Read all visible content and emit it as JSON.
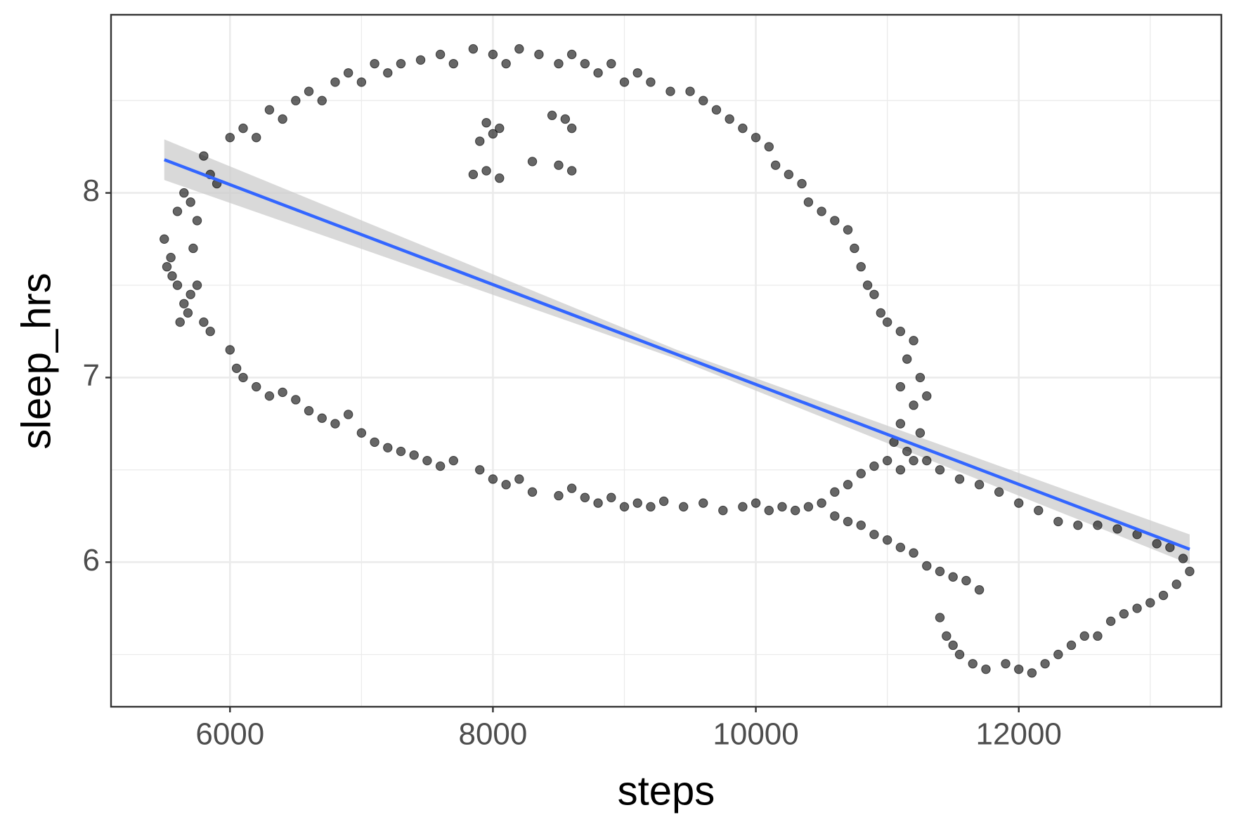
{
  "chart_data": {
    "type": "scatter",
    "x_label": "steps",
    "y_label": "sleep_hrs",
    "xlim": [
      5095,
      13541
    ],
    "ylim": [
      5.217,
      8.965
    ],
    "xticks": [
      6000,
      8000,
      10000,
      12000
    ],
    "yticks": [
      6,
      7,
      8
    ],
    "minor_xticks": [
      7000,
      9000,
      11000,
      13000
    ],
    "minor_yticks": [
      5.5,
      6.5,
      7.5,
      8.5
    ],
    "grid": true,
    "color": "#000000",
    "x": [
      5500,
      5520,
      5550,
      5600,
      5650,
      5700,
      5750,
      5600,
      5650,
      5700,
      5750,
      5620,
      5680,
      5800,
      5850,
      5720,
      5560,
      5800,
      5850,
      5900,
      6000,
      6100,
      6200,
      6300,
      6400,
      6500,
      6600,
      6700,
      6800,
      6900,
      7000,
      7100,
      7200,
      7300,
      7450,
      7600,
      7700,
      7850,
      8000,
      8100,
      8200,
      8350,
      8500,
      8600,
      8700,
      8800,
      8900,
      9000,
      9100,
      9200,
      9350,
      9500,
      9600,
      9700,
      9800,
      9900,
      10000,
      10100,
      10150,
      10250,
      10350,
      10400,
      10500,
      10600,
      10700,
      10750,
      10800,
      10850,
      10900,
      10950,
      11000,
      11100,
      11200,
      11150,
      11250,
      11100,
      11200,
      11300,
      11100,
      11250,
      11150,
      11100,
      11200,
      11050,
      6000,
      6050,
      6100,
      6200,
      6300,
      6400,
      6500,
      6600,
      6700,
      6800,
      6900,
      7000,
      7100,
      7200,
      7300,
      7400,
      7500,
      7600,
      7700,
      7900,
      8000,
      8100,
      8200,
      8300,
      8500,
      8600,
      8700,
      8800,
      8900,
      9000,
      9100,
      9200,
      9300,
      9450,
      9600,
      9750,
      9900,
      10000,
      10100,
      10200,
      10300,
      10400,
      10500,
      10600,
      10700,
      10800,
      10900,
      11000,
      10600,
      10700,
      10800,
      10900,
      11000,
      11100,
      11200,
      11300,
      11400,
      11500,
      11600,
      11700,
      11400,
      11450,
      11500,
      11550,
      11650,
      11750,
      11900,
      12000,
      12100,
      12200,
      12300,
      12400,
      12500,
      12600,
      12700,
      12800,
      12900,
      13000,
      13100,
      13200,
      13300,
      13250,
      13150,
      13050,
      12900,
      12750,
      12600,
      12450,
      12300,
      12150,
      12000,
      11850,
      11700,
      11550,
      11400,
      11300,
      7950,
      8000,
      8050,
      7900,
      7850,
      7950,
      8050,
      8450,
      8550,
      8600,
      8500,
      8600,
      8300
    ],
    "values": [
      7.75,
      7.6,
      7.65,
      7.9,
      8.0,
      7.95,
      7.85,
      7.5,
      7.4,
      7.45,
      7.5,
      7.3,
      7.35,
      7.3,
      7.25,
      7.7,
      7.55,
      8.2,
      8.1,
      8.05,
      8.3,
      8.35,
      8.3,
      8.45,
      8.4,
      8.5,
      8.55,
      8.5,
      8.6,
      8.65,
      8.6,
      8.7,
      8.65,
      8.7,
      8.72,
      8.75,
      8.7,
      8.78,
      8.75,
      8.7,
      8.78,
      8.75,
      8.7,
      8.75,
      8.7,
      8.65,
      8.7,
      8.6,
      8.65,
      8.6,
      8.55,
      8.55,
      8.5,
      8.45,
      8.4,
      8.35,
      8.3,
      8.25,
      8.15,
      8.1,
      8.05,
      7.95,
      7.9,
      7.85,
      7.8,
      7.7,
      7.6,
      7.5,
      7.45,
      7.35,
      7.3,
      7.25,
      7.2,
      7.1,
      7.0,
      6.95,
      6.85,
      6.9,
      6.75,
      6.7,
      6.6,
      6.5,
      6.55,
      6.65,
      7.15,
      7.05,
      7.0,
      6.95,
      6.9,
      6.92,
      6.88,
      6.82,
      6.78,
      6.75,
      6.8,
      6.7,
      6.65,
      6.62,
      6.6,
      6.58,
      6.55,
      6.52,
      6.55,
      6.5,
      6.45,
      6.42,
      6.45,
      6.38,
      6.36,
      6.4,
      6.35,
      6.32,
      6.35,
      6.3,
      6.32,
      6.3,
      6.33,
      6.3,
      6.32,
      6.28,
      6.3,
      6.32,
      6.28,
      6.3,
      6.28,
      6.3,
      6.32,
      6.38,
      6.42,
      6.48,
      6.52,
      6.55,
      6.25,
      6.22,
      6.2,
      6.15,
      6.12,
      6.08,
      6.05,
      5.98,
      5.95,
      5.92,
      5.9,
      5.85,
      5.7,
      5.6,
      5.55,
      5.5,
      5.45,
      5.42,
      5.45,
      5.42,
      5.4,
      5.45,
      5.5,
      5.55,
      5.6,
      5.6,
      5.68,
      5.72,
      5.75,
      5.78,
      5.82,
      5.88,
      5.95,
      6.02,
      6.08,
      6.1,
      6.15,
      6.18,
      6.2,
      6.2,
      6.22,
      6.28,
      6.32,
      6.38,
      6.42,
      6.45,
      6.5,
      6.55,
      8.38,
      8.32,
      8.35,
      8.28,
      8.1,
      8.12,
      8.08,
      8.42,
      8.4,
      8.35,
      8.15,
      8.12,
      8.17
    ],
    "trend": {
      "color": "#3366ff",
      "band_color": "#cccccc",
      "x": [
        5500,
        9400,
        13300
      ],
      "values": [
        8.18,
        7.125,
        6.07
      ],
      "lower": [
        8.07,
        7.1,
        5.99
      ],
      "upper": [
        8.29,
        7.15,
        6.15
      ]
    }
  }
}
